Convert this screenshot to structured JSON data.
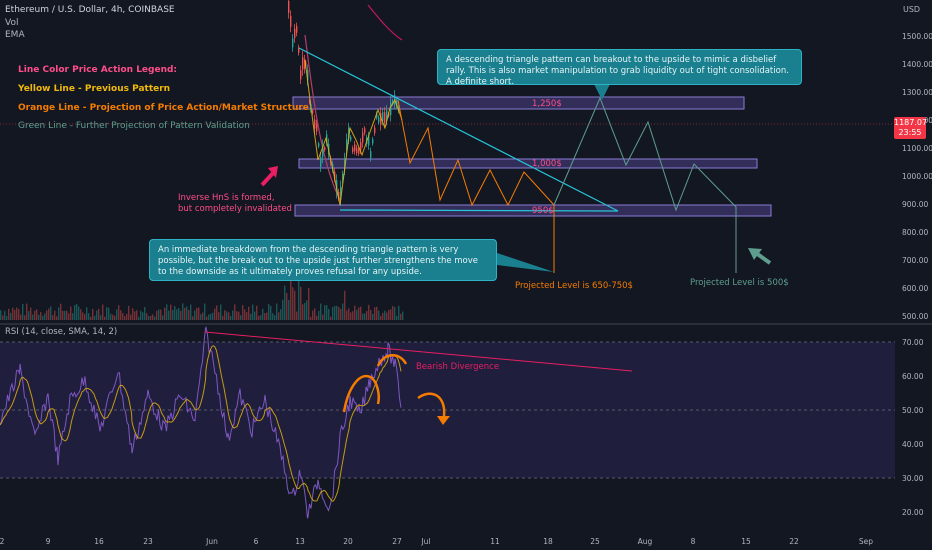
{
  "symbol": {
    "title": "Ethereum / U.S. Dollar, 4h, COINBASE",
    "vol_label": "Vol",
    "ema_label": "EMA"
  },
  "price_axis": {
    "currency": "USD",
    "ticks": [
      "1500.00",
      "1400.00",
      "1300.00",
      "1200.00",
      "1100.00",
      "1000.00",
      "900.00",
      "800.00",
      "700.00",
      "600.00",
      "500.00"
    ],
    "last_price": "1187.07",
    "countdown": "23:55",
    "last_price_color": "#f23645"
  },
  "rsi_axis": {
    "ticks": [
      "70.00",
      "60.00",
      "50.00",
      "40.00",
      "30.00",
      "20.00"
    ]
  },
  "time_axis": {
    "ticks": [
      "2",
      "9",
      "16",
      "23",
      "Jun",
      "6",
      "13",
      "20",
      "27",
      "Jul",
      "11",
      "18",
      "25",
      "Aug",
      "8",
      "15",
      "22",
      "Sep"
    ]
  },
  "legend": {
    "title": "Line Color Price Action Legend:",
    "yellow": "Yellow Line - Previous Pattern",
    "orange": "Orange Line - Projection of Price Action/Market Structure",
    "green": "Green Line - Further Projection of Pattern Validation"
  },
  "annotations": {
    "level_1250": "1,250$",
    "level_1000": "1,000$",
    "level_950": "950$",
    "inverse_hns": "Inverse HnS is formed,",
    "inverse_hns_2": "but completely invalidated",
    "projected_orange": "Projected Level is 650-750$",
    "projected_green": "Projected Level is 500$",
    "bearish_divergence": "Bearish Divergence"
  },
  "callouts": {
    "top": "A descending triangle pattern can breakout to the upside to mimic a disbelief rally. This is also market manipulation to grab liquidity out of tight consolidation. A definite short.",
    "bottom": "An immediate breakdown from the descending triangle pattern is very possible, but the break out to the upside just further strengthens the move to the downside as it ultimately proves refusal for any upside."
  },
  "rsi": {
    "title": "RSI (14, close, SMA, 14, 2)"
  },
  "colors": {
    "background": "#131722",
    "zone_fill": "#5b4a9e",
    "zone_border": "#8a7cd6",
    "triangle": "#26c6da",
    "orange": "#f57c00",
    "green": "#5e9e8e",
    "rsi_line": "#7e57c2",
    "rsi_ma": "#f0b90b",
    "divergence": "#e91e63"
  },
  "chart_data": {
    "type": "line",
    "title": "Ethereum / U.S. Dollar, 4h, COINBASE",
    "ylim": [
      480,
      1560
    ],
    "price_levels": [
      1250,
      1000,
      950
    ],
    "orange_projection_points": [
      [
        1260,
        "late Jun"
      ],
      [
        1000,
        "Jul"
      ],
      [
        1200,
        "Jul"
      ],
      [
        900,
        "Jul"
      ],
      [
        1100,
        "Jul"
      ],
      [
        900,
        "Jul"
      ],
      [
        1050,
        "mid Jul"
      ],
      [
        900,
        "Jul 18"
      ],
      [
        680,
        "Jul 18"
      ]
    ],
    "green_projection_points": [
      [
        880,
        "Jul 20"
      ],
      [
        1270,
        "Jul 25"
      ],
      [
        1030,
        "Jul 29"
      ],
      [
        1200,
        "Aug 1"
      ],
      [
        890,
        "Aug 6"
      ],
      [
        1040,
        "Aug 9"
      ],
      [
        890,
        "Aug 13"
      ],
      [
        530,
        "Aug 13"
      ]
    ],
    "rsi_ylim": [
      15,
      72
    ],
    "rsi_levels": [
      70,
      50,
      30
    ]
  }
}
